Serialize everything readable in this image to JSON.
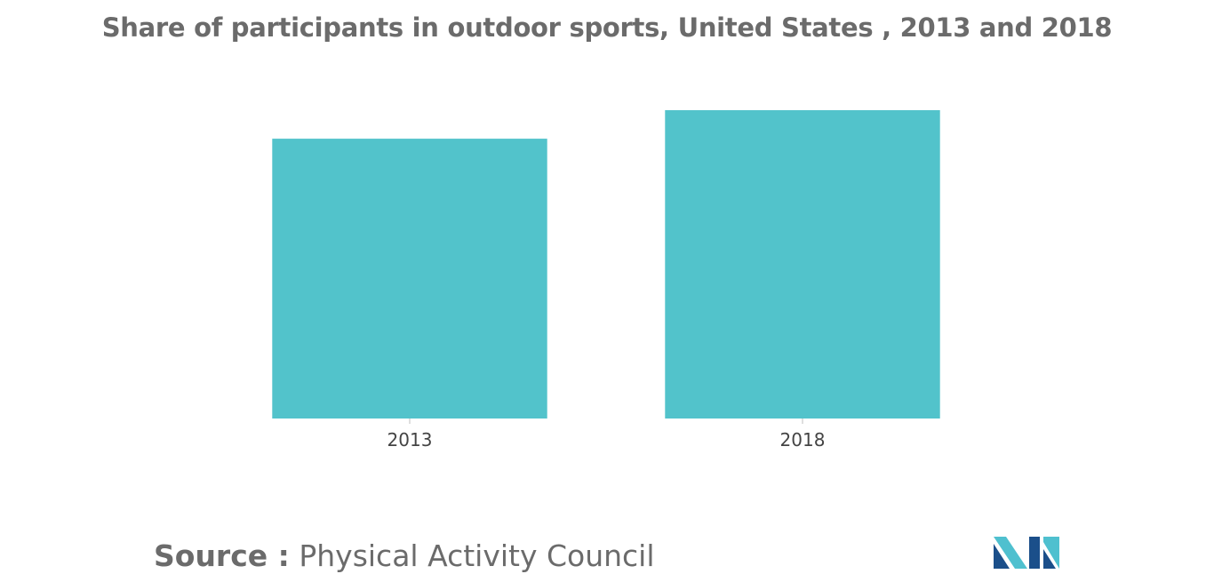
{
  "colors": {
    "bar": "#52c3cb",
    "title_text": "#6b6b6b",
    "tick_text": "#444444",
    "logo_dark": "#1b4f8a",
    "logo_light": "#4fc0cf"
  },
  "source": {
    "label": "Source :",
    "value": "Physical Activity Council"
  },
  "logo": {
    "icon": "mordor-intelligence-logo"
  },
  "chart_data": {
    "type": "bar",
    "title": "Share of participants in outdoor sports, United States , 2013 and 2018",
    "xlabel": "",
    "ylabel": "",
    "categories": [
      "2013",
      "2018"
    ],
    "values": [
      49,
      54
    ],
    "ylim": [
      0,
      54
    ],
    "grid": false,
    "legend": "none"
  }
}
